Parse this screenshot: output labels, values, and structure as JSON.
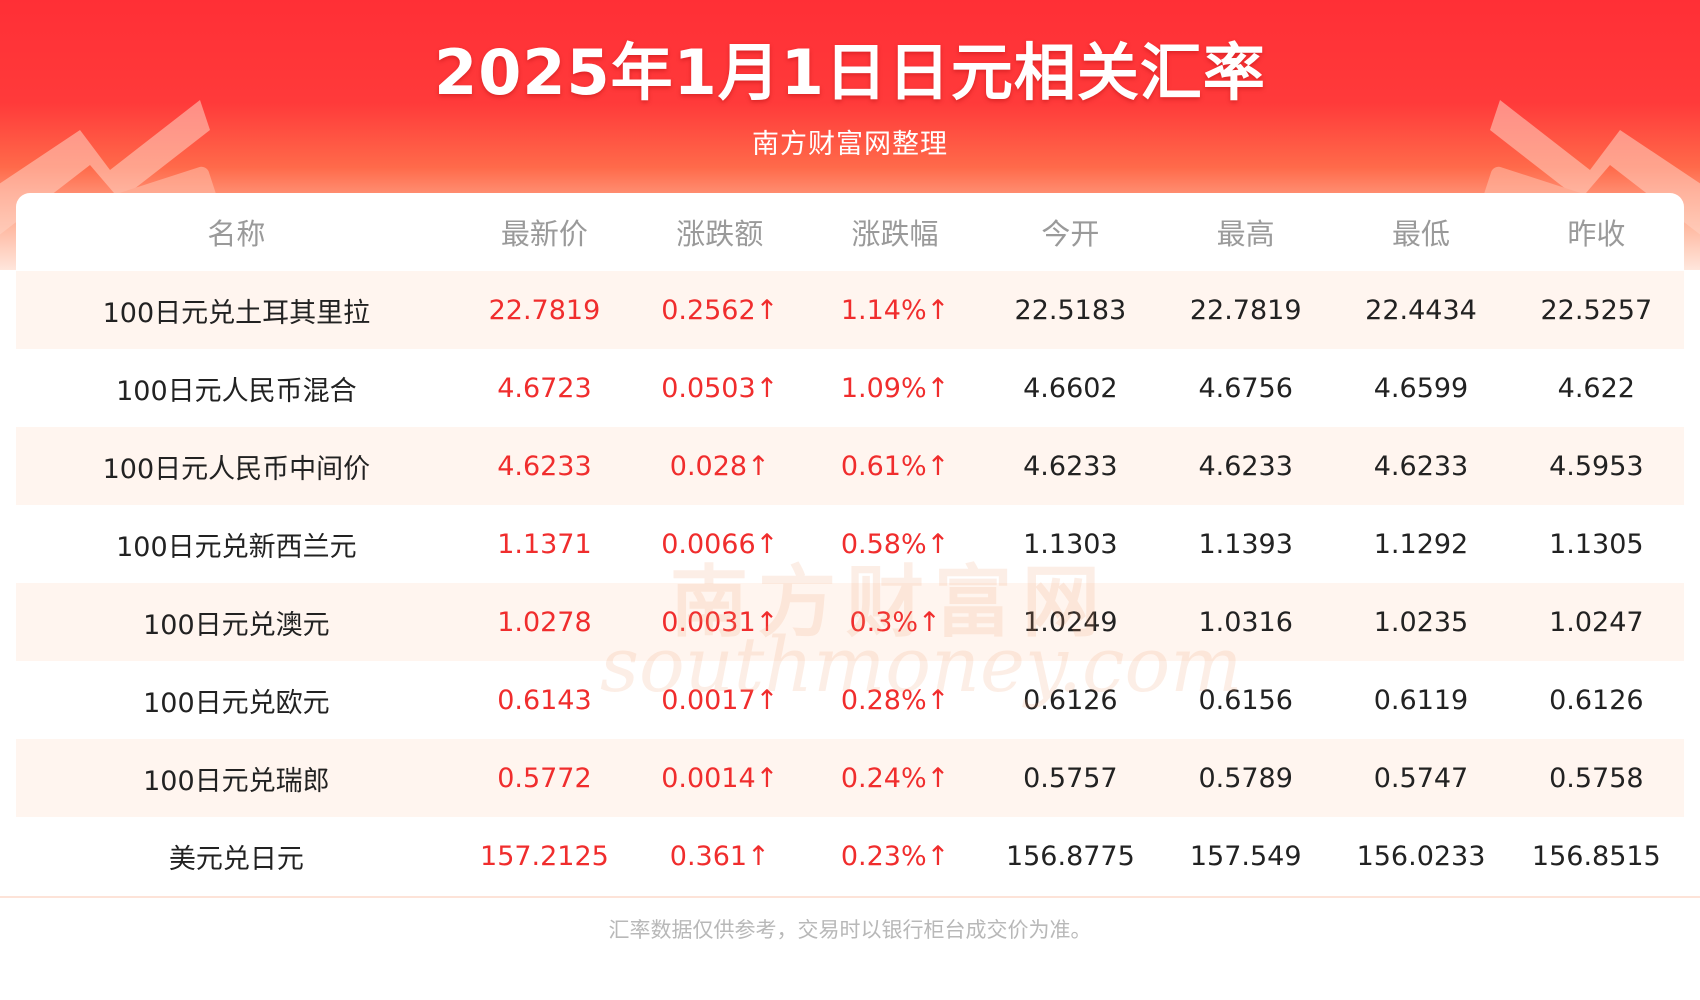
{
  "header": {
    "title": "2025年1月1日日元相关汇率",
    "subtitle": "南方财富网整理"
  },
  "table": {
    "columns": [
      "名称",
      "最新价",
      "涨跌额",
      "涨跌幅",
      "今开",
      "最高",
      "最低",
      "昨收"
    ],
    "rows": [
      [
        "100日元兑土耳其里拉",
        "22.7819",
        "0.2562↑",
        "1.14%↑",
        "22.5183",
        "22.7819",
        "22.4434",
        "22.5257"
      ],
      [
        "100日元人民币混合",
        "4.6723",
        "0.0503↑",
        "1.09%↑",
        "4.6602",
        "4.6756",
        "4.6599",
        "4.622"
      ],
      [
        "100日元人民币中间价",
        "4.6233",
        "0.028↑",
        "0.61%↑",
        "4.6233",
        "4.6233",
        "4.6233",
        "4.5953"
      ],
      [
        "100日元兑新西兰元",
        "1.1371",
        "0.0066↑",
        "0.58%↑",
        "1.1303",
        "1.1393",
        "1.1292",
        "1.1305"
      ],
      [
        "100日元兑澳元",
        "1.0278",
        "0.0031↑",
        "0.3%↑",
        "1.0249",
        "1.0316",
        "1.0235",
        "1.0247"
      ],
      [
        "100日元兑欧元",
        "0.6143",
        "0.0017↑",
        "0.28%↑",
        "0.6126",
        "0.6156",
        "0.6119",
        "0.6126"
      ],
      [
        "100日元兑瑞郎",
        "0.5772",
        "0.0014↑",
        "0.24%↑",
        "0.5757",
        "0.5789",
        "0.5747",
        "0.5758"
      ],
      [
        "美元兑日元",
        "157.2125",
        "0.361↑",
        "0.23%↑",
        "156.8775",
        "157.549",
        "156.0233",
        "156.8515"
      ]
    ]
  },
  "watermark": {
    "cn": "南方财富网",
    "en": "southmoney.com"
  },
  "footer": {
    "note": "汇率数据仅供参考，交易时以银行柜台成交价为准。"
  },
  "colors": {
    "banner_red": "#ff2f36",
    "up_red": "#f02d2d",
    "header_text_gray": "#9a9a9a",
    "stripe": "#fff5ef"
  }
}
